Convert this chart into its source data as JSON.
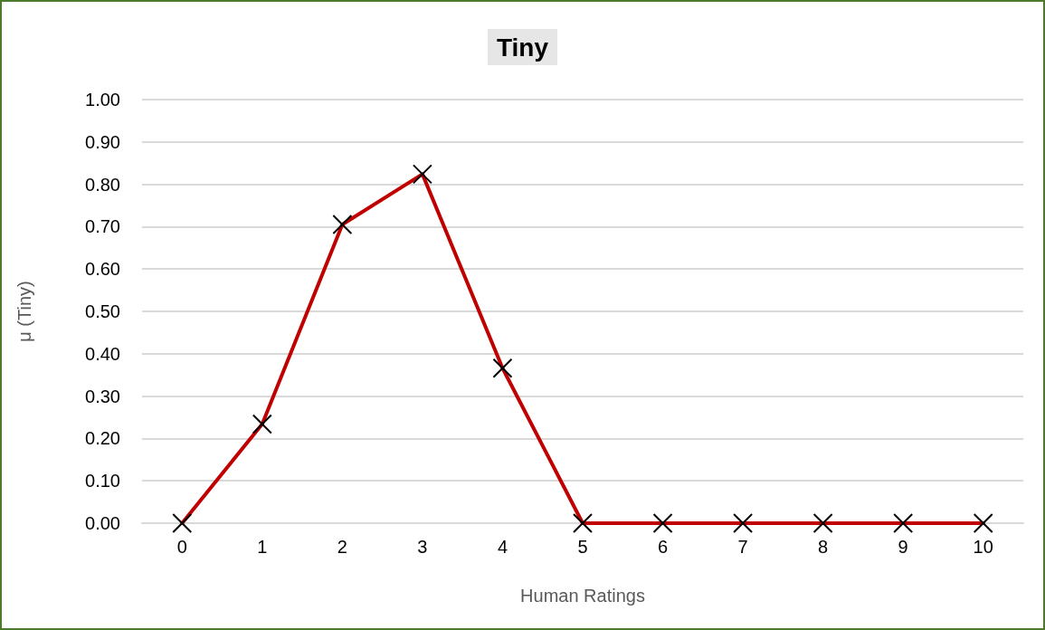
{
  "chart_data": {
    "type": "line",
    "title": "Tiny",
    "xlabel": "Human Ratings",
    "ylabel": "μ (Tiny)",
    "categories": [
      "0",
      "1",
      "2",
      "3",
      "4",
      "5",
      "6",
      "7",
      "8",
      "9",
      "10"
    ],
    "series": [
      {
        "color": "#c00000",
        "values": [
          0,
          0.234,
          0.705,
          0.824,
          0.366,
          0,
          0,
          0,
          0,
          0,
          0
        ]
      }
    ],
    "ylim": [
      0,
      1
    ],
    "yticks": [
      {
        "value": 0,
        "label": "0.00"
      },
      {
        "value": 0.1,
        "label": "0.10"
      },
      {
        "value": 0.2,
        "label": "0.20"
      },
      {
        "value": 0.3,
        "label": "0.30"
      },
      {
        "value": 0.4,
        "label": "0.40"
      },
      {
        "value": 0.5,
        "label": "0.50"
      },
      {
        "value": 0.6,
        "label": "0.60"
      },
      {
        "value": 0.7,
        "label": "0.70"
      },
      {
        "value": 0.8,
        "label": "0.80"
      },
      {
        "value": 0.9,
        "label": "0.90"
      },
      {
        "value": 1,
        "label": "1.00"
      }
    ],
    "grid": "y",
    "marker": "cross",
    "line_style": "solid"
  }
}
